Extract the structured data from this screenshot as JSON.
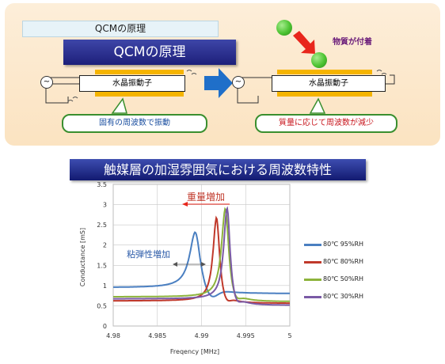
{
  "top": {
    "label": "QCMの原理",
    "banner": "QCMの原理",
    "left_crystal": "水晶振動子",
    "right_crystal": "水晶振動子",
    "left_note": "固有の周波数で振動",
    "right_note": "質量に応じて周波数が減少",
    "mass_label": "物質が付着",
    "source_symbol": "~"
  },
  "section_title": "触媒層の加湿雰囲気における周波数特性",
  "colors": {
    "banner": "#1d1f7a",
    "electrode": "#f5b400",
    "note_border": "#3a8f2f",
    "arrow_blue": "#1f6fc9",
    "arrow_red": "#e8261c"
  },
  "chart_data": {
    "type": "line",
    "xlabel": "Freqency [MHz]",
    "ylabel": "Conductance [mS]",
    "xlim": [
      4.98,
      5.0
    ],
    "ylim": [
      0,
      3.5
    ],
    "xticks": [
      "4.98",
      "4.985",
      "4.99",
      "4.995",
      "5"
    ],
    "yticks": [
      "0",
      "0.5",
      "1",
      "1.5",
      "2",
      "2.5",
      "3",
      "3.5"
    ],
    "grid": true,
    "legend_position": "right",
    "annotations": {
      "weight_increase": "重量増加",
      "viscoelastic_increase": "粘弾性増加"
    },
    "series": [
      {
        "name": "80℃ 95%RH",
        "color": "#4a7fc1",
        "peak_x": 4.9893,
        "peak_y": 2.32,
        "baseline": 0.95,
        "tail": 0.8,
        "width": 0.00078
      },
      {
        "name": "80℃ 80%RH",
        "color": "#c0392b",
        "peak_x": 4.9917,
        "peak_y": 2.68,
        "baseline": 0.62,
        "tail": 0.56,
        "width": 0.00048
      },
      {
        "name": "80℃ 50%RH",
        "color": "#8db33c",
        "peak_x": 4.9927,
        "peak_y": 2.9,
        "baseline": 0.72,
        "tail": 0.6,
        "width": 0.00052
      },
      {
        "name": "80℃ 30%RH",
        "color": "#7a5aa6",
        "peak_x": 4.9929,
        "peak_y": 2.92,
        "baseline": 0.67,
        "tail": 0.51,
        "width": 0.00046
      }
    ]
  }
}
